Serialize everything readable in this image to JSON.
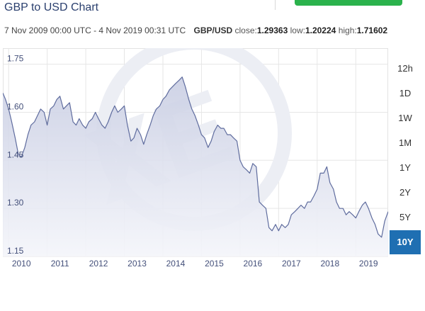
{
  "page": {
    "title": "GBP to USD Chart",
    "date_range": "7 Nov 2009 00:00 UTC - 4 Nov 2019 00:31 UTC",
    "pair": "GBP/USD",
    "stats": [
      {
        "label": "close:",
        "value": "1.29363"
      },
      {
        "label": "low:",
        "value": "1.20224"
      },
      {
        "label": "high:",
        "value": "1.71602"
      }
    ]
  },
  "range_buttons": [
    {
      "label": "12h",
      "active": false
    },
    {
      "label": "1D",
      "active": false
    },
    {
      "label": "1W",
      "active": false
    },
    {
      "label": "1M",
      "active": false
    },
    {
      "label": "1Y",
      "active": false
    },
    {
      "label": "2Y",
      "active": false
    },
    {
      "label": "5Y",
      "active": false
    },
    {
      "label": "10Y",
      "active": true
    }
  ],
  "colors": {
    "line": "#5f6c9e",
    "area_top": "#c9cee3",
    "area_bottom": "#f4f5fa",
    "grid": "#e6e6e6",
    "navigator_fill": "#6f7aa5",
    "active_button": "#1f6fb2",
    "watermark": "#eceef4"
  },
  "chart_data": {
    "type": "area",
    "title": "",
    "xlabel": "",
    "ylabel": "",
    "ylim": [
      1.15,
      1.8
    ],
    "xlim": [
      2009.85,
      2019.84
    ],
    "yticks": [
      "1.75",
      "1.60",
      "1.45",
      "1.30",
      "1.15"
    ],
    "ytick_values": [
      1.75,
      1.6,
      1.45,
      1.3,
      1.15
    ],
    "xticks": [
      "2010",
      "2011",
      "2012",
      "2013",
      "2014",
      "2015",
      "2016",
      "2017",
      "2018",
      "2019"
    ],
    "grid": true,
    "watermark": "XE",
    "series": [
      {
        "x": [
          2009.85,
          2009.92,
          2010.0,
          2010.08,
          2010.17,
          2010.25,
          2010.33,
          2010.42,
          2010.5,
          2010.58,
          2010.67,
          2010.75,
          2010.83,
          2010.92,
          2011.0,
          2011.08,
          2011.17,
          2011.25,
          2011.33,
          2011.42,
          2011.5,
          2011.58,
          2011.67,
          2011.75,
          2011.83,
          2011.92,
          2012.0,
          2012.08,
          2012.17,
          2012.25,
          2012.33,
          2012.42,
          2012.5,
          2012.58,
          2012.67,
          2012.75,
          2012.83,
          2012.92,
          2013.0,
          2013.08,
          2013.17,
          2013.25,
          2013.33,
          2013.42,
          2013.5,
          2013.58,
          2013.67,
          2013.75,
          2013.83,
          2013.92,
          2014.0,
          2014.08,
          2014.17,
          2014.25,
          2014.33,
          2014.42,
          2014.5,
          2014.58,
          2014.67,
          2014.75,
          2014.83,
          2014.92,
          2015.0,
          2015.08,
          2015.17,
          2015.25,
          2015.33,
          2015.42,
          2015.5,
          2015.58,
          2015.67,
          2015.75,
          2015.83,
          2015.92,
          2016.0,
          2016.08,
          2016.17,
          2016.25,
          2016.33,
          2016.42,
          2016.5,
          2016.58,
          2016.67,
          2016.75,
          2016.83,
          2016.92,
          2017.0,
          2017.08,
          2017.17,
          2017.25,
          2017.33,
          2017.42,
          2017.5,
          2017.58,
          2017.67,
          2017.75,
          2017.83,
          2017.92,
          2018.0,
          2018.08,
          2018.17,
          2018.25,
          2018.33,
          2018.42,
          2018.5,
          2018.58,
          2018.67,
          2018.75,
          2018.83,
          2018.92,
          2019.0,
          2019.08,
          2019.17,
          2019.25,
          2019.33,
          2019.42,
          2019.5,
          2019.58,
          2019.67,
          2019.75,
          2019.84
        ],
        "y": [
          1.66,
          1.64,
          1.61,
          1.57,
          1.52,
          1.47,
          1.46,
          1.49,
          1.53,
          1.56,
          1.57,
          1.59,
          1.61,
          1.6,
          1.56,
          1.61,
          1.62,
          1.64,
          1.65,
          1.61,
          1.62,
          1.63,
          1.57,
          1.56,
          1.58,
          1.56,
          1.55,
          1.57,
          1.58,
          1.6,
          1.58,
          1.56,
          1.55,
          1.57,
          1.6,
          1.62,
          1.6,
          1.61,
          1.62,
          1.56,
          1.51,
          1.52,
          1.55,
          1.53,
          1.5,
          1.53,
          1.56,
          1.59,
          1.61,
          1.62,
          1.64,
          1.65,
          1.67,
          1.68,
          1.69,
          1.7,
          1.71,
          1.68,
          1.64,
          1.61,
          1.59,
          1.56,
          1.53,
          1.52,
          1.49,
          1.51,
          1.54,
          1.56,
          1.55,
          1.55,
          1.53,
          1.53,
          1.52,
          1.51,
          1.45,
          1.43,
          1.42,
          1.41,
          1.44,
          1.43,
          1.32,
          1.31,
          1.3,
          1.24,
          1.23,
          1.25,
          1.23,
          1.25,
          1.24,
          1.25,
          1.28,
          1.29,
          1.3,
          1.31,
          1.3,
          1.32,
          1.32,
          1.34,
          1.36,
          1.41,
          1.41,
          1.43,
          1.38,
          1.36,
          1.32,
          1.3,
          1.3,
          1.28,
          1.29,
          1.28,
          1.27,
          1.29,
          1.31,
          1.32,
          1.3,
          1.27,
          1.25,
          1.22,
          1.21,
          1.26,
          1.29
        ]
      }
    ]
  }
}
